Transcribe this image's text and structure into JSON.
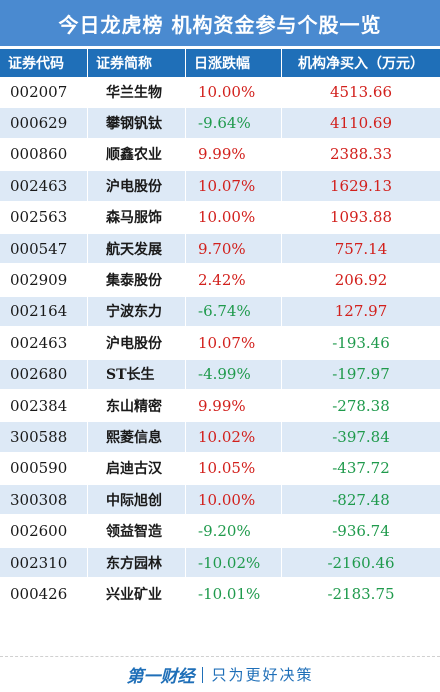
{
  "title": "今日龙虎榜  机构资金参与个股一览",
  "headers": [
    "证券代码",
    "证券简称",
    "日涨跌幅",
    "机构净买入（万元）"
  ],
  "rows": [
    {
      "code": "002007",
      "name": "华兰生物",
      "pct": "10.00%",
      "net": "4513.66",
      "pct_dir": "up",
      "net_dir": "up"
    },
    {
      "code": "000629",
      "name": "攀钢钒钛",
      "pct": "-9.64%",
      "net": "4110.69",
      "pct_dir": "down",
      "net_dir": "up"
    },
    {
      "code": "000860",
      "name": "顺鑫农业",
      "pct": "9.99%",
      "net": "2388.33",
      "pct_dir": "up",
      "net_dir": "up"
    },
    {
      "code": "002463",
      "name": "沪电股份",
      "pct": "10.07%",
      "net": "1629.13",
      "pct_dir": "up",
      "net_dir": "up"
    },
    {
      "code": "002563",
      "name": "森马服饰",
      "pct": "10.00%",
      "net": "1093.88",
      "pct_dir": "up",
      "net_dir": "up"
    },
    {
      "code": "000547",
      "name": "航天发展",
      "pct": "9.70%",
      "net": "757.14",
      "pct_dir": "up",
      "net_dir": "up"
    },
    {
      "code": "002909",
      "name": "集泰股份",
      "pct": "2.42%",
      "net": "206.92",
      "pct_dir": "up",
      "net_dir": "up"
    },
    {
      "code": "002164",
      "name": "宁波东力",
      "pct": "-6.74%",
      "net": "127.97",
      "pct_dir": "down",
      "net_dir": "up"
    },
    {
      "code": "002463",
      "name": "沪电股份",
      "pct": "10.07%",
      "net": "-193.46",
      "pct_dir": "up",
      "net_dir": "down"
    },
    {
      "code": "002680",
      "name": "ST长生",
      "pct": "-4.99%",
      "net": "-197.97",
      "pct_dir": "down",
      "net_dir": "down"
    },
    {
      "code": "002384",
      "name": "东山精密",
      "pct": "9.99%",
      "net": "-278.38",
      "pct_dir": "up",
      "net_dir": "down"
    },
    {
      "code": "300588",
      "name": "熙菱信息",
      "pct": "10.02%",
      "net": "-397.84",
      "pct_dir": "up",
      "net_dir": "down"
    },
    {
      "code": "000590",
      "name": "启迪古汉",
      "pct": "10.05%",
      "net": "-437.72",
      "pct_dir": "up",
      "net_dir": "down"
    },
    {
      "code": "300308",
      "name": "中际旭创",
      "pct": "10.00%",
      "net": "-827.48",
      "pct_dir": "up",
      "net_dir": "down"
    },
    {
      "code": "002600",
      "name": "领益智造",
      "pct": "-9.20%",
      "net": "-936.74",
      "pct_dir": "down",
      "net_dir": "down"
    },
    {
      "code": "002310",
      "name": "东方园林",
      "pct": "-10.02%",
      "net": "-2160.46",
      "pct_dir": "down",
      "net_dir": "down"
    },
    {
      "code": "000426",
      "name": "兴业矿业",
      "pct": "-10.01%",
      "net": "-2183.75",
      "pct_dir": "down",
      "net_dir": "down"
    }
  ],
  "footer": {
    "logo": "第一财经",
    "slogan": "只为更好决策"
  },
  "colors": {
    "up": "#d2201c",
    "down": "#1f9a4c",
    "header_bg": "#1f6fb8",
    "title_bg": "#4a8ad0",
    "stripe": "#dde9f6"
  }
}
